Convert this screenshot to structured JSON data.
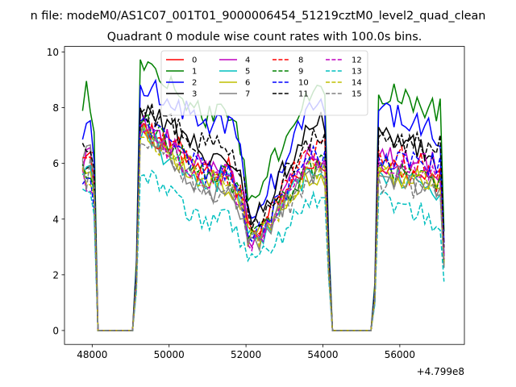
{
  "chart_data": {
    "type": "line",
    "suptitle": "n file: modeM0/AS1C07_001T01_9000006454_51219cztM0_level2_quad_clean",
    "title": "Quadrant 0 module wise count rates with 100.0s bins.",
    "xlabel": "",
    "ylabel": "",
    "x_offset_label": "+4.799e8",
    "xlim": [
      47280,
      57680
    ],
    "ylim": [
      -0.5,
      10.2
    ],
    "x_ticks": [
      48000,
      50000,
      52000,
      54000,
      56000
    ],
    "x_tick_labels": [
      "48000",
      "50000",
      "52000",
      "54000",
      "56000"
    ],
    "y_ticks": [
      0,
      2,
      4,
      6,
      8,
      10
    ],
    "y_tick_labels": [
      "0",
      "2",
      "4",
      "6",
      "8",
      "10"
    ],
    "legend_position": "top-center",
    "legend_columns": 4,
    "segments": [
      {
        "x_start": 47750,
        "x_end": 48150,
        "plateau": "first"
      },
      {
        "x_start": 49150,
        "x_end": 54150,
        "plateau": "second"
      },
      {
        "x_start": 55350,
        "x_end": 57150,
        "plateau": "third"
      }
    ],
    "gap_value": 0,
    "series": [
      {
        "name": "0",
        "color": "#ff0000",
        "dash": "solid",
        "start": 6.5,
        "peak": 7.5,
        "mid": 5.8,
        "dip": 3.6,
        "end": 5.8,
        "tail": 5.4
      },
      {
        "name": "1",
        "color": "#008000",
        "dash": "solid",
        "start": 8.4,
        "peak": 9.8,
        "mid": 7.7,
        "dip": 4.9,
        "end": 8.6,
        "tail": 7.9
      },
      {
        "name": "2",
        "color": "#0000ff",
        "dash": "solid",
        "start": 7.3,
        "peak": 8.9,
        "mid": 7.5,
        "dip": 4.2,
        "end": 8.0,
        "tail": 7.0
      },
      {
        "name": "3",
        "color": "#000000",
        "dash": "solid",
        "start": 6.1,
        "peak": 8.1,
        "mid": 6.3,
        "dip": 4.1,
        "end": 7.4,
        "tail": 6.0
      },
      {
        "name": "4",
        "color": "#bf00bf",
        "dash": "solid",
        "start": 6.0,
        "peak": 7.4,
        "mid": 5.9,
        "dip": 3.4,
        "end": 6.3,
        "tail": 6.0
      },
      {
        "name": "5",
        "color": "#00bfbf",
        "dash": "solid",
        "start": 5.8,
        "peak": 7.0,
        "mid": 5.3,
        "dip": 3.3,
        "end": 5.8,
        "tail": 5.0
      },
      {
        "name": "6",
        "color": "#bfbf00",
        "dash": "solid",
        "start": 6.0,
        "peak": 7.2,
        "mid": 5.2,
        "dip": 3.4,
        "end": 5.6,
        "tail": 5.5
      },
      {
        "name": "7",
        "color": "#808080",
        "dash": "solid",
        "start": 6.2,
        "peak": 7.3,
        "mid": 5.0,
        "dip": 3.2,
        "end": 5.6,
        "tail": 5.1
      },
      {
        "name": "8",
        "color": "#ff0000",
        "dash": "dashed",
        "start": 6.2,
        "peak": 7.4,
        "mid": 5.6,
        "dip": 3.5,
        "end": 6.5,
        "tail": 5.7
      },
      {
        "name": "9",
        "color": "#008000",
        "dash": "dashed",
        "start": 5.9,
        "peak": 7.6,
        "mid": 5.5,
        "dip": 3.6,
        "end": 5.9,
        "tail": 5.3
      },
      {
        "name": "10",
        "color": "#0000ff",
        "dash": "dashed",
        "start": 5.1,
        "peak": 7.7,
        "mid": 5.7,
        "dip": 3.4,
        "end": 6.2,
        "tail": 5.9
      },
      {
        "name": "11",
        "color": "#000000",
        "dash": "dashed",
        "start": 6.5,
        "peak": 8.0,
        "mid": 6.6,
        "dip": 3.9,
        "end": 6.9,
        "tail": 6.6
      },
      {
        "name": "12",
        "color": "#bf00bf",
        "dash": "dashed",
        "start": 5.5,
        "peak": 7.3,
        "mid": 5.5,
        "dip": 3.3,
        "end": 6.0,
        "tail": 5.7
      },
      {
        "name": "13",
        "color": "#00bfbf",
        "dash": "dashed",
        "start": 4.7,
        "peak": 5.8,
        "mid": 3.9,
        "dip": 2.4,
        "end": 4.7,
        "tail": 3.9
      },
      {
        "name": "14",
        "color": "#bfbf00",
        "dash": "dashed",
        "start": 5.4,
        "peak": 7.2,
        "mid": 5.4,
        "dip": 3.3,
        "end": 5.8,
        "tail": 5.3
      },
      {
        "name": "15",
        "color": "#808080",
        "dash": "dashed",
        "start": 5.6,
        "peak": 7.0,
        "mid": 5.0,
        "dip": 3.3,
        "end": 5.4,
        "tail": 5.0
      }
    ]
  }
}
